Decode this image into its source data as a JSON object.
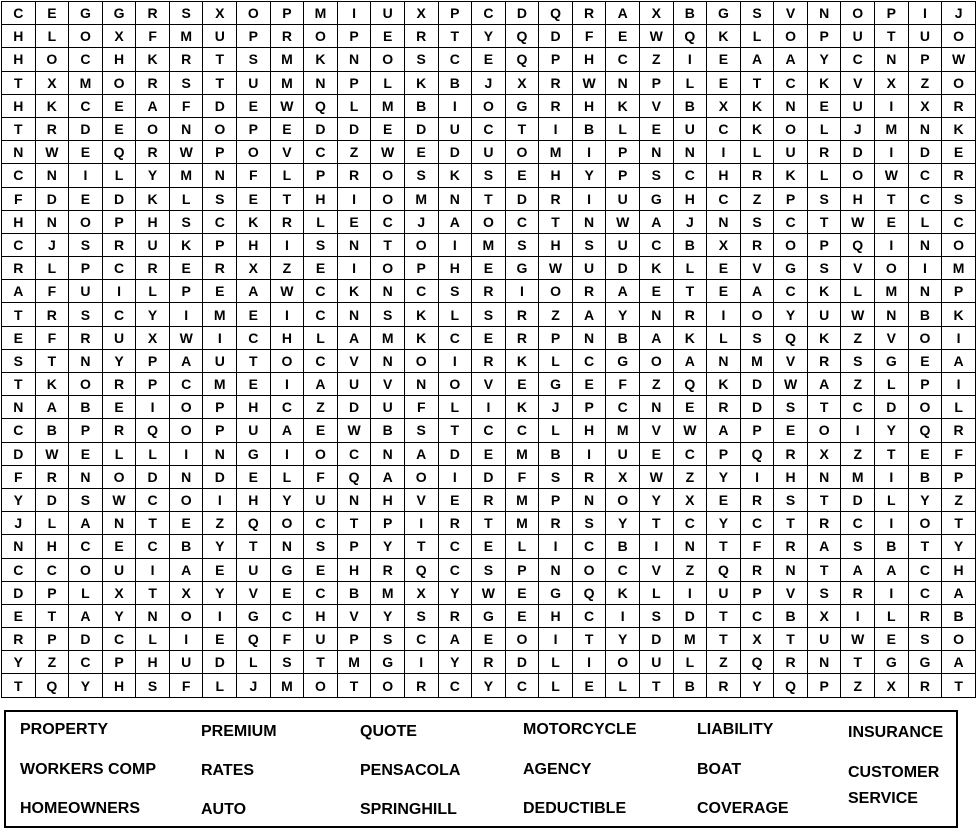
{
  "puzzle": {
    "rows": [
      "CEGGRSXOPMIUXPCDQRAXBGSVNOPIJ",
      "HLOXFMUPROPERTYQDFEWQKLOPUTUO",
      "HOCHKRTSMKNOSCEQPHCZIEAAYCNPW",
      "TXMORSTUMNPLKBJXRWNPLETCKVXZO",
      "HKCEAFDEWQLMBIOGRHKVBXKNEUIXR",
      "TRDEONOPEDDEDUCTIBLEUCKOLJMNK",
      "NWEQRWPOVCZWEDUOMIPNNILURDIDE",
      "CNILYMNFLPROSKSEHYPSCHRKLOWCR",
      "FDEDKLSETHIOMNTDRIUGHCZPSHTCS",
      "HNOPHSCKRLECJAOCTNWAJNSCTWELC",
      "CJSRUKPHISNTOIMSHSUCBXROPQINO",
      "RLPCRERXZEIOPHEGWUDKLEVGSVOIM",
      "AFUILPEAWCKNCSRIORAETEACKLMNP",
      "TRSCYIMEICNSKLSRZAYNRIOYUWNBK",
      "EFRUXWICHLAMKCERPNBAKLSQKZVOI",
      "STNYPAUTOCVNOIRKLCGOANMVRSGEA",
      "TKORPCMEIAUVNOVEGEFZQKDWAZLPI",
      "NABEIOPHCZDUFLIKJPCNERDSTCDOL",
      "CBPRQOPUAEWBSTCCLHMVWAPEOIYQR",
      "DWELLINGIOCNADEMBIUECPQRXZTEF",
      "FRNODNDELFQAOIDFSRXWZYIHNMIBP",
      "YDSWCOIHYUNHVERMPNOYXERSTDLYZ",
      "JLANTEZQOCTPIRTMRSYTCYCTRCIOT",
      "NHCECBYTNSPYTCELICBINTFRASBTY",
      "CCOUIAEUGEHRQCSPNOCVZQRNTAACH",
      "DPLXTXYVECBMXYWEGQKLIUPVSRICA",
      "ETAYNOIGCHVYSRGEHCISDTCBXILRB",
      "RPDCLIEQFUPSCAEOITYDMTXTUWESO",
      "YZCPHUDLSTMGIYRDLIOULZQRNTGGA",
      "TQYHSFLJMOTORCYCLELTBRYQPZXRT"
    ]
  },
  "word_list": [
    "PROPERTY",
    "WORKERS COMP",
    "HOMEOWNERS",
    "PREMIUM",
    "RATES",
    "AUTO",
    "QUOTE",
    "PENSACOLA",
    "SPRINGHILL",
    "MOTORCYCLE",
    "AGENCY",
    "DEDUCTIBLE",
    "LIABILITY",
    "BOAT",
    "COVERAGE",
    "INSURANCE",
    "CUSTOMER",
    "SERVICE"
  ]
}
